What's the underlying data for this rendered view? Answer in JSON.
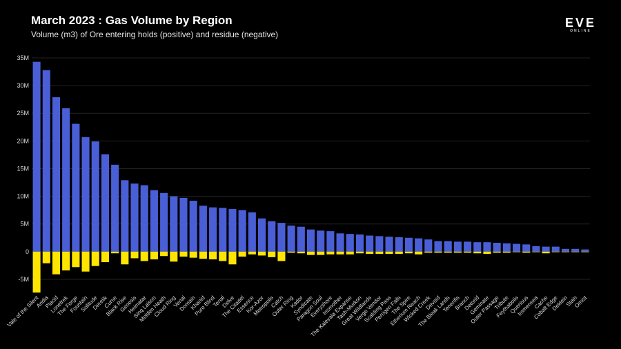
{
  "header": {
    "title": "March 2023 : Gas Volume by Region",
    "subtitle": "Volume (m3) of Ore entering holds (positive) and residue (negative)"
  },
  "logo": {
    "main": "EVE",
    "sub": "ONLINE"
  },
  "colors": {
    "positive": "#4a5fd6",
    "negative": "#ffe500",
    "grid": "#222222",
    "background": "#000000"
  },
  "chart_data": {
    "type": "bar",
    "title": "March 2023 : Gas Volume by Region",
    "subtitle": "Volume (m3) of Ore entering holds (positive) and residue (negative)",
    "xlabel": "",
    "ylabel": "",
    "ylim": [
      -7.5,
      35.5
    ],
    "yticks": [
      -5,
      0,
      5,
      10,
      15,
      20,
      25,
      30,
      35
    ],
    "ytick_labels": [
      "-5M",
      "0",
      "5M",
      "10M",
      "15M",
      "20M",
      "25M",
      "30M",
      "35M"
    ],
    "categories": [
      "Vale of the Silent",
      "Aridia",
      "Placid",
      "Lonetrek",
      "The Forge",
      "Fountain",
      "Solitude",
      "Derelik",
      "Curse",
      "Black Rise",
      "Genesis",
      "Heimatar",
      "Sinq Laison",
      "Molden Heath",
      "Cloud Ring",
      "Venal",
      "Domain",
      "Khanid",
      "Pure Blind",
      "Tenal",
      "Delve",
      "The Citadel",
      "Essence",
      "Kor-Azor",
      "Metropolis",
      "Catch",
      "Outer Ring",
      "Kador",
      "Syndicate",
      "Paragon Soul",
      "Everyshore",
      "Insmother",
      "The Kalevala Expanse",
      "Tash-Murkon",
      "Great Wildlands",
      "Verge Vendor",
      "Scalding Pass",
      "Perrigen Falls",
      "The Spire",
      "Etherium Reach",
      "Wicked Creek",
      "Devoid",
      "The Bleak Lands",
      "Tenerifis",
      "Branch",
      "Detorid",
      "Geminate",
      "Outer Passage",
      "Tribute",
      "Feythabolis",
      "Querious",
      "Immensea",
      "Cache",
      "Cobalt Edge",
      "Deklein",
      "Stain",
      "Omist"
    ],
    "series": [
      {
        "name": "Volume entering holds",
        "values": [
          34.3,
          32.8,
          27.9,
          25.9,
          23.1,
          20.7,
          19.9,
          17.6,
          15.7,
          12.9,
          12.3,
          12.0,
          11.1,
          10.6,
          10.0,
          9.7,
          9.2,
          8.3,
          8.0,
          7.9,
          7.7,
          7.5,
          7.1,
          6.0,
          5.5,
          5.2,
          4.7,
          4.5,
          4.0,
          3.8,
          3.7,
          3.3,
          3.2,
          3.1,
          2.9,
          2.8,
          2.7,
          2.6,
          2.5,
          2.4,
          2.2,
          1.9,
          1.9,
          1.8,
          1.8,
          1.7,
          1.7,
          1.6,
          1.5,
          1.4,
          1.3,
          1.0,
          0.9,
          0.9,
          0.5,
          0.5,
          0.4
        ]
      },
      {
        "name": "Residue",
        "values": [
          -7.4,
          -2.1,
          -4.1,
          -3.4,
          -2.8,
          -3.6,
          -2.6,
          -1.9,
          -0.3,
          -2.3,
          -1.2,
          -1.7,
          -1.4,
          -0.8,
          -1.8,
          -0.9,
          -1.1,
          -1.3,
          -1.4,
          -1.7,
          -2.3,
          -0.9,
          -0.5,
          -0.7,
          -1.0,
          -1.7,
          -0.2,
          -0.3,
          -0.6,
          -0.6,
          -0.5,
          -0.5,
          -0.5,
          -0.3,
          -0.4,
          -0.4,
          -0.4,
          -0.4,
          -0.3,
          -0.5,
          -0.2,
          -0.2,
          -0.2,
          -0.2,
          -0.2,
          -0.3,
          -0.4,
          -0.2,
          -0.2,
          -0.1,
          -0.2,
          -0.1,
          -0.3,
          -0.1,
          -0.1,
          -0.1,
          -0.1
        ]
      }
    ],
    "grid": true,
    "legend": "none"
  }
}
